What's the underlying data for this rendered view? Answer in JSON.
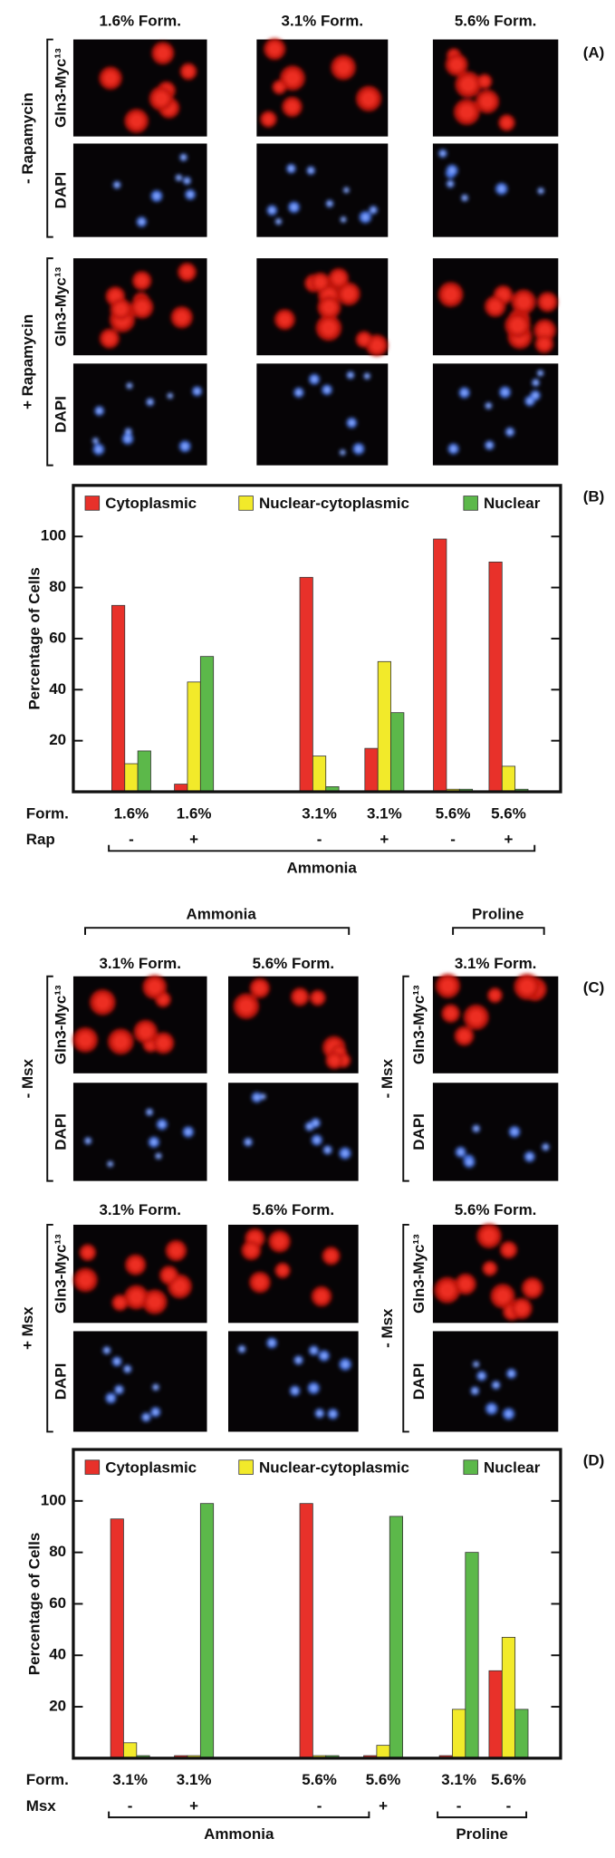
{
  "panel_a": {
    "label": "(A)",
    "columns": [
      "1.6% Form.",
      "3.1% Form.",
      "5.6% Form."
    ],
    "groups": [
      {
        "label": "- Rapamycin",
        "rows": [
          "Gln3-Myc¹³",
          "DAPI"
        ]
      },
      {
        "label": "+ Rapamycin",
        "rows": [
          "Gln3-Myc¹³",
          "DAPI"
        ]
      }
    ]
  },
  "panel_c": {
    "label": "(C)",
    "sources": [
      "Ammonia",
      "Proline"
    ],
    "rows": [
      "Gln3-Myc¹³",
      "DAPI"
    ],
    "blocks": [
      {
        "left_headers": [
          "3.1% Form.",
          "5.6% Form."
        ],
        "left_group": "- Msx",
        "right_header": "3.1% Form.",
        "right_group": "- Msx"
      },
      {
        "left_headers": [
          "3.1% Form.",
          "5.6% Form."
        ],
        "left_group": "+ Msx",
        "right_header": "5.6% Form.",
        "right_group": "- Msx"
      }
    ]
  },
  "chart_data": [
    {
      "type": "bar",
      "panel_label": "(B)",
      "y_label": "Percentage of Cells",
      "category_label": "Form.",
      "categories": [
        "1.6%",
        "1.6%",
        "3.1%",
        "3.1%",
        "5.6%",
        "5.6%"
      ],
      "treatment": {
        "label": "Rap",
        "values": [
          "-",
          "+",
          "-",
          "+",
          "-",
          "+"
        ]
      },
      "brackets": [
        "Ammonia"
      ],
      "series": [
        {
          "name": "Cytoplasmic",
          "color": "#e8312a",
          "values": [
            73,
            3,
            84,
            17,
            99,
            90
          ]
        },
        {
          "name": "Nuclear-cytoplasmic",
          "color": "#f2ea2a",
          "values": [
            11,
            43,
            14,
            51,
            1,
            10
          ]
        },
        {
          "name": "Nuclear",
          "color": "#5cb84a",
          "values": [
            16,
            53,
            2,
            31,
            1,
            1
          ]
        }
      ],
      "ylim": [
        0,
        120
      ],
      "yticks": [
        20,
        40,
        60,
        80,
        100
      ]
    },
    {
      "type": "bar",
      "panel_label": "(D)",
      "y_label": "Percentage of Cells",
      "category_label": "Form.",
      "categories": [
        "3.1%",
        "3.1%",
        "5.6%",
        "5.6%",
        "3.1%",
        "5.6%"
      ],
      "treatment": {
        "label": "Msx",
        "values": [
          "-",
          "+",
          "-",
          "+",
          "-",
          "-"
        ]
      },
      "brackets": [
        "Ammonia",
        "Proline"
      ],
      "series": [
        {
          "name": "Cytoplasmic",
          "color": "#e8312a",
          "values": [
            93,
            1,
            99,
            1,
            1,
            34
          ]
        },
        {
          "name": "Nuclear-cytoplasmic",
          "color": "#f2ea2a",
          "values": [
            6,
            1,
            1,
            5,
            19,
            47
          ]
        },
        {
          "name": "Nuclear",
          "color": "#5cb84a",
          "values": [
            1,
            99,
            1,
            94,
            80,
            19
          ]
        }
      ],
      "ylim": [
        0,
        120
      ],
      "yticks": [
        20,
        40,
        60,
        80,
        100
      ]
    }
  ]
}
